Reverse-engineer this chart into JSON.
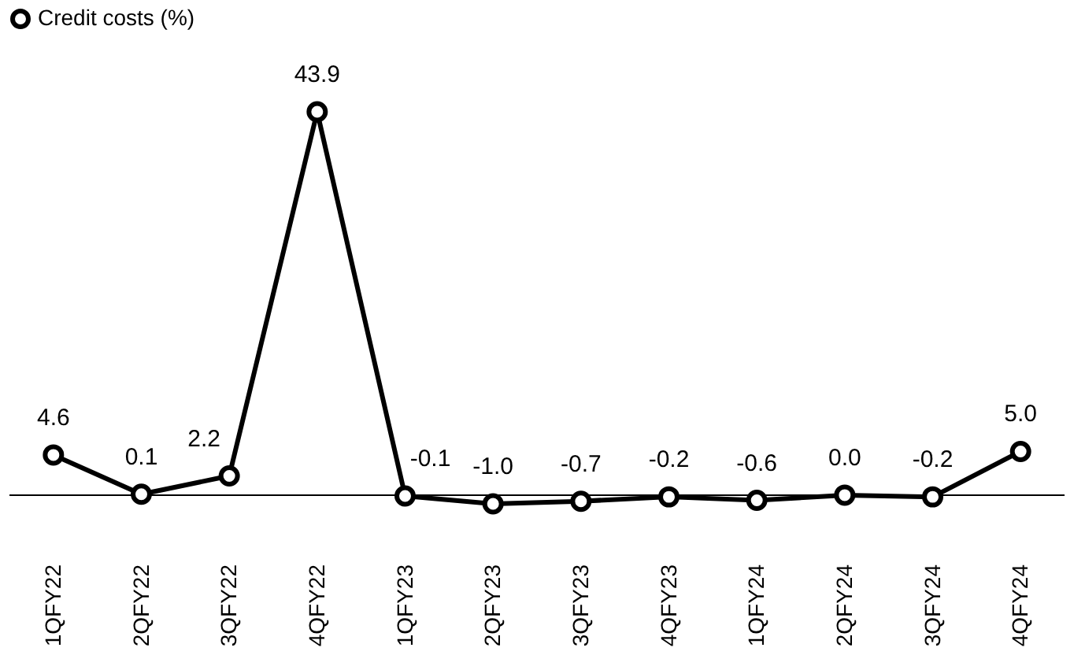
{
  "chart_data": {
    "type": "line",
    "categories": [
      "1QFY22",
      "2QFY22",
      "3QFY22",
      "4QFY22",
      "1QFY23",
      "2QFY23",
      "3QFY23",
      "4QFY23",
      "1QFY24",
      "2QFY24",
      "3QFY24",
      "4QFY24"
    ],
    "series": [
      {
        "name": "Credit costs (%)",
        "color": "#000000",
        "values": [
          4.6,
          0.1,
          2.2,
          43.9,
          -0.1,
          -1.0,
          -0.7,
          -0.2,
          -0.6,
          0.0,
          -0.2,
          5.0
        ],
        "value_labels": [
          "4.6",
          "0.1",
          "2.2",
          "43.9",
          "-0.1",
          "-1.0",
          "-0.7",
          "-0.2",
          "-0.6",
          "0.0",
          "-0.2",
          "5.0"
        ]
      }
    ],
    "marker": "circle",
    "line_style": "solid",
    "legend": "top",
    "grid": false
  }
}
